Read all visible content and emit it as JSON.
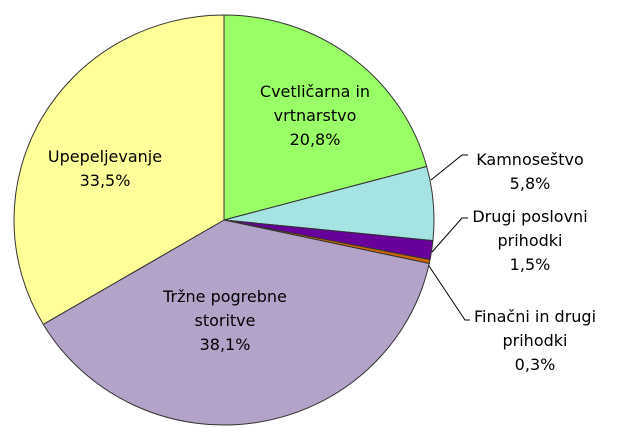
{
  "chart_data": {
    "type": "pie",
    "categories": [
      "Cvetličarna in vrtnarstvo",
      "Kamnoseštvo",
      "Drugi poslovni prihodki",
      "Finačni in drugi prihodki",
      "Tržne pogrebne storitve",
      "Upepeljevanje"
    ],
    "values": [
      20.8,
      5.8,
      1.5,
      0.3,
      38.1,
      33.5
    ],
    "value_labels": [
      "20,8%",
      "5,8%",
      "1,5%",
      "0,3%",
      "38,1%",
      "33,5%"
    ],
    "colors": [
      "#99ff66",
      "#a6e3e3",
      "#660099",
      "#cc6600",
      "#b3a3c9",
      "#ffff99"
    ]
  }
}
